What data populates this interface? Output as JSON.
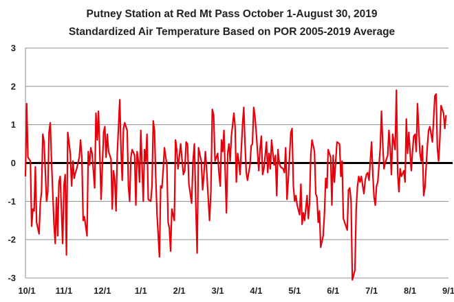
{
  "chart_data": {
    "type": "line",
    "title": "Putney Station at Red Mt Pass October 1-August 30, 2019",
    "subtitle": "Standardized Air Temperature Based on POR 2005-2019 Average",
    "xlabel": "",
    "ylabel": "",
    "ylim": [
      -3,
      3
    ],
    "yticks": [
      "-3",
      "-2",
      "-1",
      "0",
      "1",
      "2",
      "3"
    ],
    "xticks": [
      "10/1",
      "11/1",
      "12/1",
      "1/1",
      "2/1",
      "3/1",
      "4/1",
      "5/1",
      "6/1",
      "7/1",
      "8/1",
      "9/1"
    ],
    "grid": true,
    "legend": "none",
    "series": [
      {
        "color": "#e8000b",
        "x_start": "2018-10-01",
        "x_end": "2019-08-30",
        "values": [
          -0.35,
          1.55,
          0.15,
          0.05,
          -1.65,
          -1.2,
          -1.25,
          -0.1,
          -1.55,
          -1.85,
          -1.05,
          -0.75,
          0.75,
          0.55,
          -1.0,
          -0.75,
          0.8,
          1.05,
          0.05,
          -1.6,
          -2.1,
          -0.9,
          -1.9,
          -0.5,
          -0.35,
          -2.1,
          -0.6,
          -0.3,
          -2.4,
          0.8,
          0.25,
          -0.6,
          0.05,
          -0.4,
          -0.25,
          -0.15,
          0.15,
          0.6,
          0.15,
          -1.5,
          -1.4,
          -1.9,
          0.3,
          -0.05,
          0.4,
          0.25,
          -0.65,
          1.3,
          0.6,
          1.35,
          0.25,
          -0.95,
          0.8,
          0.95,
          0.15,
          0.75,
          0.3,
          0.1,
          -1.2,
          -0.2,
          -0.45,
          -1.25,
          0.25,
          1.65,
          0.35,
          -0.45,
          0.9,
          1.05,
          0.85,
          -0.6,
          -1.0,
          0.15,
          0.35,
          0.2,
          -1.1,
          0.3,
          0.05,
          -0.5,
          0.85,
          -1.0,
          0.35,
          0.05,
          0.75,
          -0.95,
          -1.0,
          -0.6,
          1.1,
          0.85,
          -0.35,
          -1.3,
          -2.45,
          -0.6,
          -0.65,
          -0.2,
          0.4,
          -0.05,
          -1.55,
          -1.7,
          -2.3,
          -1.2,
          -1.5,
          0.6,
          0.35,
          -0.15,
          0.15,
          0.5,
          -0.3,
          -0.2,
          0.55,
          0.5,
          -0.55,
          -1.05,
          0.05,
          0.5,
          -1.05,
          -2.35,
          0.4,
          0.05,
          -0.7,
          -0.25,
          0.3,
          -0.25,
          -1.5,
          -0.75,
          1.4,
          1.25,
          0.05,
          0.25,
          -0.25,
          -0.6,
          0.6,
          0.3,
          0.85,
          -1.3,
          0.25,
          0.5,
          0.05,
          0.7,
          1.3,
          0.95,
          -0.5,
          0.25,
          0.05,
          -0.3,
          1.0,
          1.45,
          0.5,
          -0.25,
          -0.45,
          -0.05,
          0.45,
          0.5,
          1.45,
          1.2,
          0.8,
          -0.2,
          0.35,
          0.7,
          -0.3,
          -0.15,
          0.55,
          -0.25,
          0.25,
          -0.15,
          0.6,
          -0.05,
          0.2,
          -0.85,
          0.35,
          0.0,
          -0.1,
          -0.15,
          -0.25,
          0.4,
          -0.95,
          -0.45,
          0.8,
          0.9,
          -0.6,
          -1.0,
          -0.85,
          -1.1,
          -1.35,
          -0.55,
          -1.6,
          -1.3,
          -1.5,
          -0.85,
          -1.45,
          -1.05,
          0.2,
          0.6,
          0.3,
          -0.8,
          -0.9,
          -1.55,
          -1.25,
          -2.2,
          -1.9,
          -1.35,
          -0.4,
          -0.65,
          0.35,
          0.15,
          -1.1,
          0.2,
          -0.5,
          0.05,
          0.55,
          0.5,
          -0.35,
          0.05,
          -1.45,
          -1.55,
          -1.75,
          -0.7,
          -0.65,
          -1.0,
          -3.05,
          -2.8,
          -1.2,
          -0.6,
          -0.35,
          -0.5,
          -0.35,
          -0.8,
          -0.45,
          -0.3,
          -0.25,
          -0.45,
          0.55,
          -0.3,
          -0.9,
          -1.1,
          -0.6,
          -0.5,
          0.4,
          1.35,
          0.5,
          -0.15,
          0.0,
          0.2,
          0.85,
          0.4,
          -0.3,
          0.75,
          0.35,
          1.9,
          -0.25,
          -0.75,
          -0.15,
          -0.35,
          -0.2,
          -0.5,
          1.15,
          0.25,
          0.8,
          -0.2,
          0.3,
          0.7,
          0.75,
          0.3,
          1.55,
          0.25,
          0.05,
          0.45,
          -0.85,
          -0.65,
          0.45,
          0.85,
          0.95,
          0.75,
          0.55,
          1.75,
          1.8,
          0.4,
          0.05,
          0.6,
          1.5,
          1.3,
          0.9,
          1.25
        ]
      }
    ]
  }
}
